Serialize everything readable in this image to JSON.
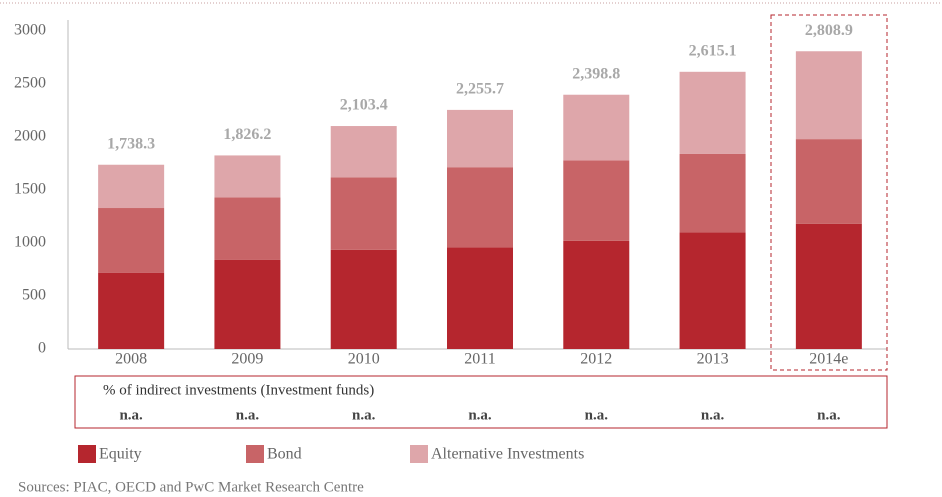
{
  "chart_data": {
    "type": "stacked_bar",
    "categories": [
      "2008",
      "2009",
      "2010",
      "2011",
      "2012",
      "2013",
      "2014e"
    ],
    "series": [
      {
        "name": "Equity",
        "color": "#b5262e",
        "values": [
          720,
          840,
          935,
          960,
          1020,
          1100,
          1180
        ]
      },
      {
        "name": "Bond",
        "color": "#c86467",
        "values": [
          610,
          590,
          685,
          755,
          760,
          740,
          800
        ]
      },
      {
        "name": "Alternative Investments",
        "color": "#dea6aa",
        "values": [
          408.3,
          396.2,
          483.4,
          540.7,
          618.8,
          775.1,
          828.9
        ]
      }
    ],
    "totals": [
      1738.3,
      1826.2,
      2103.4,
      2255.7,
      2398.8,
      2615.1,
      2808.9
    ],
    "total_labels": [
      "1,738.3",
      "1,826.2",
      "2,103.4",
      "2,255.7",
      "2,398.8",
      "2,615.1",
      "2,808.9"
    ],
    "ylim": [
      0,
      3000
    ],
    "yticks": [
      0,
      500,
      1000,
      1500,
      2000,
      2500,
      3000
    ],
    "indirect_table": {
      "title": "% of indirect investments (Investment funds)",
      "values": [
        "n.a.",
        "n.a.",
        "n.a.",
        "n.a.",
        "n.a.",
        "n.a.",
        "n.a."
      ]
    },
    "source": "Sources: PIAC, OECD and PwC Market Research Centre"
  }
}
